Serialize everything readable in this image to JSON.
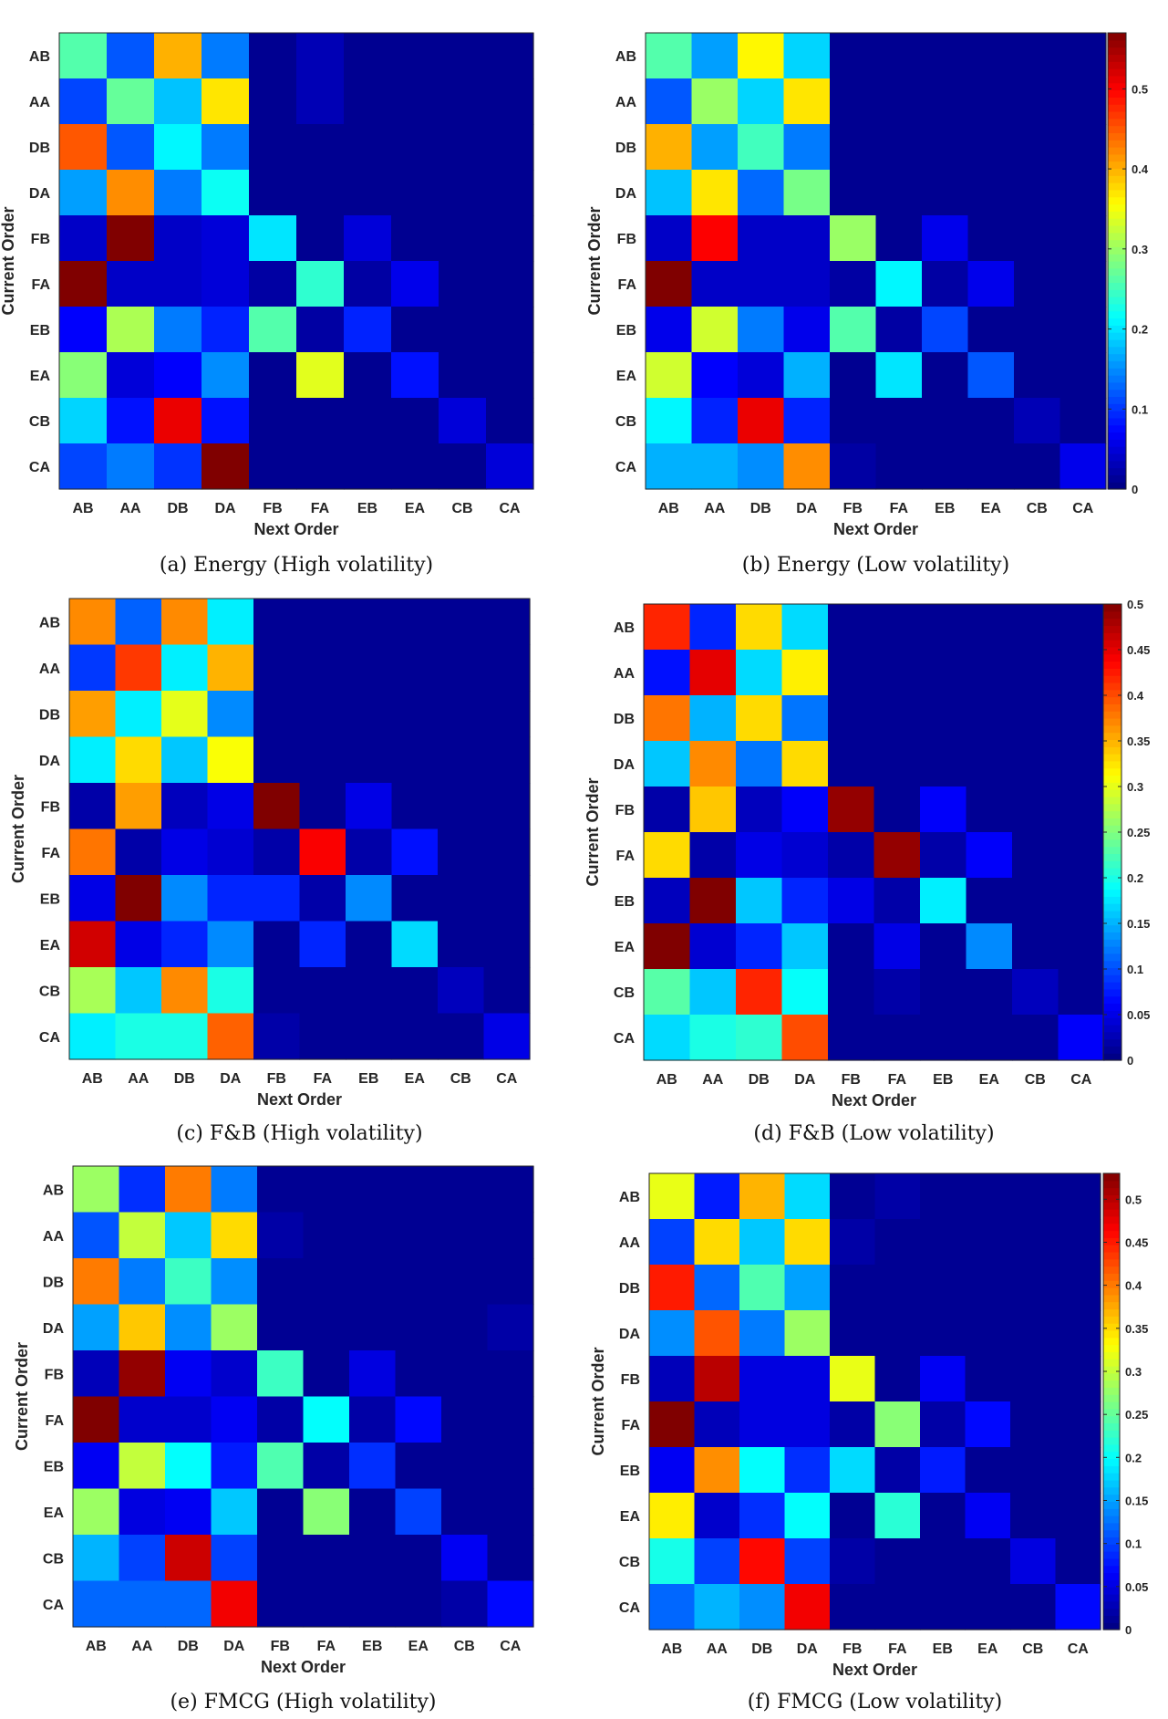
{
  "chart_data": [
    {
      "type": "heatmap",
      "title": "(a) Energy (High volatility)",
      "xlabel": "Next Order",
      "ylabel": "Current Order",
      "x_categories": [
        "AB",
        "AA",
        "DB",
        "DA",
        "FB",
        "FA",
        "EB",
        "EA",
        "CB",
        "CA"
      ],
      "y_categories": [
        "AB",
        "AA",
        "DB",
        "DA",
        "FB",
        "FA",
        "EB",
        "EA",
        "CB",
        "CA"
      ],
      "color_range": [
        0,
        0.57
      ],
      "colorbar": false,
      "values": [
        [
          0.26,
          0.12,
          0.4,
          0.14,
          0.01,
          0.03,
          0.01,
          0.01,
          0.01,
          0.01
        ],
        [
          0.11,
          0.27,
          0.18,
          0.37,
          0.01,
          0.03,
          0.01,
          0.01,
          0.01,
          0.01
        ],
        [
          0.45,
          0.12,
          0.21,
          0.14,
          0.01,
          0.01,
          0.01,
          0.01,
          0.01,
          0.01
        ],
        [
          0.16,
          0.42,
          0.14,
          0.22,
          0.01,
          0.01,
          0.01,
          0.01,
          0.01,
          0.01
        ],
        [
          0.04,
          0.57,
          0.04,
          0.05,
          0.2,
          0.01,
          0.05,
          0.01,
          0.01,
          0.01
        ],
        [
          0.57,
          0.04,
          0.04,
          0.05,
          0.02,
          0.24,
          0.02,
          0.06,
          0.01,
          0.01
        ],
        [
          0.07,
          0.31,
          0.14,
          0.09,
          0.26,
          0.02,
          0.09,
          0.01,
          0.01,
          0.01
        ],
        [
          0.29,
          0.05,
          0.07,
          0.15,
          0.01,
          0.34,
          0.01,
          0.08,
          0.01,
          0.01
        ],
        [
          0.19,
          0.08,
          0.51,
          0.08,
          0.01,
          0.01,
          0.01,
          0.01,
          0.05,
          0.01
        ],
        [
          0.11,
          0.14,
          0.1,
          0.57,
          0.01,
          0.01,
          0.01,
          0.01,
          0.01,
          0.05
        ]
      ]
    },
    {
      "type": "heatmap",
      "title": "(b) Energy (Low volatility)",
      "xlabel": "Next Order",
      "ylabel": "Current Order",
      "x_categories": [
        "AB",
        "AA",
        "DB",
        "DA",
        "FB",
        "FA",
        "EB",
        "EA",
        "CB",
        "CA"
      ],
      "y_categories": [
        "AB",
        "AA",
        "DB",
        "DA",
        "FB",
        "FA",
        "EB",
        "EA",
        "CB",
        "CA"
      ],
      "color_range": [
        0,
        0.57
      ],
      "colorbar": true,
      "colorbar_ticks": [
        0,
        0.1,
        0.2,
        0.3,
        0.4,
        0.5
      ],
      "values": [
        [
          0.26,
          0.16,
          0.36,
          0.19,
          0.01,
          0.01,
          0.01,
          0.01,
          0.01,
          0.01
        ],
        [
          0.12,
          0.3,
          0.19,
          0.37,
          0.01,
          0.01,
          0.01,
          0.01,
          0.01,
          0.01
        ],
        [
          0.4,
          0.16,
          0.25,
          0.14,
          0.01,
          0.01,
          0.01,
          0.01,
          0.01,
          0.01
        ],
        [
          0.18,
          0.37,
          0.13,
          0.28,
          0.01,
          0.01,
          0.01,
          0.01,
          0.01,
          0.01
        ],
        [
          0.04,
          0.5,
          0.04,
          0.04,
          0.3,
          0.01,
          0.06,
          0.01,
          0.01,
          0.01
        ],
        [
          0.57,
          0.04,
          0.04,
          0.04,
          0.02,
          0.21,
          0.02,
          0.06,
          0.01,
          0.01
        ],
        [
          0.06,
          0.33,
          0.14,
          0.06,
          0.26,
          0.02,
          0.11,
          0.01,
          0.01,
          0.01
        ],
        [
          0.33,
          0.07,
          0.05,
          0.17,
          0.01,
          0.2,
          0.01,
          0.12,
          0.01,
          0.01
        ],
        [
          0.21,
          0.09,
          0.51,
          0.09,
          0.01,
          0.01,
          0.01,
          0.01,
          0.03,
          0.01
        ],
        [
          0.17,
          0.17,
          0.15,
          0.42,
          0.02,
          0.01,
          0.01,
          0.01,
          0.01,
          0.06
        ]
      ]
    },
    {
      "type": "heatmap",
      "title": "(c) F&B (High volatility)",
      "xlabel": "Next Order",
      "ylabel": "Current Order",
      "x_categories": [
        "AB",
        "AA",
        "DB",
        "DA",
        "FB",
        "FA",
        "EB",
        "EA",
        "CB",
        "CA"
      ],
      "y_categories": [
        "AB",
        "AA",
        "DB",
        "DA",
        "FB",
        "FA",
        "EB",
        "EA",
        "CB",
        "CA"
      ],
      "color_range": [
        0,
        0.5
      ],
      "colorbar": false,
      "values": [
        [
          0.37,
          0.11,
          0.37,
          0.18,
          0.01,
          0.01,
          0.01,
          0.01,
          0.01,
          0.01
        ],
        [
          0.09,
          0.41,
          0.18,
          0.35,
          0.01,
          0.01,
          0.01,
          0.01,
          0.01,
          0.01
        ],
        [
          0.36,
          0.18,
          0.3,
          0.13,
          0.01,
          0.01,
          0.01,
          0.01,
          0.01,
          0.01
        ],
        [
          0.18,
          0.33,
          0.16,
          0.31,
          0.01,
          0.01,
          0.01,
          0.01,
          0.01,
          0.01
        ],
        [
          0.02,
          0.36,
          0.03,
          0.05,
          0.5,
          0.01,
          0.05,
          0.01,
          0.01,
          0.01
        ],
        [
          0.38,
          0.02,
          0.05,
          0.04,
          0.02,
          0.44,
          0.02,
          0.07,
          0.01,
          0.01
        ],
        [
          0.05,
          0.5,
          0.13,
          0.08,
          0.08,
          0.02,
          0.13,
          0.01,
          0.01,
          0.01
        ],
        [
          0.46,
          0.05,
          0.08,
          0.13,
          0.01,
          0.08,
          0.01,
          0.17,
          0.01,
          0.01
        ],
        [
          0.27,
          0.16,
          0.37,
          0.2,
          0.01,
          0.01,
          0.01,
          0.01,
          0.03,
          0.01
        ],
        [
          0.18,
          0.2,
          0.2,
          0.39,
          0.02,
          0.01,
          0.01,
          0.01,
          0.01,
          0.05
        ]
      ]
    },
    {
      "type": "heatmap",
      "title": "(d) F&B (Low volatility)",
      "xlabel": "Next Order",
      "ylabel": "Current Order",
      "x_categories": [
        "AB",
        "AA",
        "DB",
        "DA",
        "FB",
        "FA",
        "EB",
        "EA",
        "CB",
        "CA"
      ],
      "y_categories": [
        "AB",
        "AA",
        "DB",
        "DA",
        "FB",
        "FA",
        "EB",
        "EA",
        "CB",
        "CA"
      ],
      "color_range": [
        0,
        0.5
      ],
      "colorbar": true,
      "colorbar_ticks": [
        0,
        0.05,
        0.1,
        0.15,
        0.2,
        0.25,
        0.3,
        0.35,
        0.4,
        0.45,
        0.5
      ],
      "values": [
        [
          0.42,
          0.08,
          0.33,
          0.17,
          0.01,
          0.01,
          0.01,
          0.01,
          0.01,
          0.01
        ],
        [
          0.07,
          0.45,
          0.17,
          0.32,
          0.01,
          0.01,
          0.01,
          0.01,
          0.01,
          0.01
        ],
        [
          0.38,
          0.15,
          0.33,
          0.12,
          0.01,
          0.01,
          0.01,
          0.01,
          0.01,
          0.01
        ],
        [
          0.16,
          0.37,
          0.12,
          0.33,
          0.01,
          0.01,
          0.01,
          0.01,
          0.01,
          0.01
        ],
        [
          0.02,
          0.34,
          0.03,
          0.06,
          0.49,
          0.01,
          0.06,
          0.01,
          0.01,
          0.01
        ],
        [
          0.33,
          0.02,
          0.05,
          0.04,
          0.02,
          0.49,
          0.02,
          0.06,
          0.01,
          0.01
        ],
        [
          0.03,
          0.5,
          0.16,
          0.08,
          0.05,
          0.02,
          0.18,
          0.01,
          0.01,
          0.01
        ],
        [
          0.5,
          0.04,
          0.08,
          0.16,
          0.01,
          0.05,
          0.01,
          0.13,
          0.01,
          0.01
        ],
        [
          0.23,
          0.16,
          0.42,
          0.19,
          0.01,
          0.02,
          0.01,
          0.01,
          0.03,
          0.01
        ],
        [
          0.17,
          0.2,
          0.21,
          0.4,
          0.01,
          0.01,
          0.01,
          0.01,
          0.01,
          0.06
        ]
      ]
    },
    {
      "type": "heatmap",
      "title": "(e) FMCG (High volatility)",
      "xlabel": "Next Order",
      "ylabel": "Current Order",
      "x_categories": [
        "AB",
        "AA",
        "DB",
        "DA",
        "FB",
        "FA",
        "EB",
        "EA",
        "CB",
        "CA"
      ],
      "y_categories": [
        "AB",
        "AA",
        "DB",
        "DA",
        "FB",
        "FA",
        "EB",
        "EA",
        "CB",
        "CA"
      ],
      "color_range": [
        0,
        0.53
      ],
      "colorbar": false,
      "values": [
        [
          0.28,
          0.09,
          0.4,
          0.13,
          0.01,
          0.01,
          0.01,
          0.01,
          0.01,
          0.01
        ],
        [
          0.11,
          0.3,
          0.17,
          0.35,
          0.02,
          0.01,
          0.01,
          0.01,
          0.01,
          0.01
        ],
        [
          0.4,
          0.13,
          0.23,
          0.14,
          0.01,
          0.01,
          0.01,
          0.01,
          0.01,
          0.01
        ],
        [
          0.15,
          0.36,
          0.14,
          0.28,
          0.01,
          0.01,
          0.01,
          0.01,
          0.01,
          0.02
        ],
        [
          0.03,
          0.52,
          0.06,
          0.04,
          0.23,
          0.01,
          0.05,
          0.01,
          0.01,
          0.01
        ],
        [
          0.53,
          0.04,
          0.04,
          0.06,
          0.02,
          0.2,
          0.02,
          0.07,
          0.01,
          0.01
        ],
        [
          0.06,
          0.3,
          0.2,
          0.08,
          0.24,
          0.02,
          0.09,
          0.01,
          0.01,
          0.01
        ],
        [
          0.28,
          0.05,
          0.06,
          0.17,
          0.01,
          0.27,
          0.01,
          0.1,
          0.01,
          0.01
        ],
        [
          0.16,
          0.1,
          0.49,
          0.1,
          0.01,
          0.01,
          0.01,
          0.01,
          0.06,
          0.01
        ],
        [
          0.12,
          0.12,
          0.12,
          0.47,
          0.01,
          0.01,
          0.01,
          0.01,
          0.02,
          0.07
        ]
      ]
    },
    {
      "type": "heatmap",
      "title": "(f) FMCG (Low volatility)",
      "xlabel": "Next Order",
      "ylabel": "Current Order",
      "x_categories": [
        "AB",
        "AA",
        "DB",
        "DA",
        "FB",
        "FA",
        "EB",
        "EA",
        "CB",
        "CA"
      ],
      "y_categories": [
        "AB",
        "AA",
        "DB",
        "DA",
        "FB",
        "FA",
        "EB",
        "EA",
        "CB",
        "CA"
      ],
      "color_range": [
        0,
        0.53
      ],
      "colorbar": true,
      "colorbar_ticks": [
        0,
        0.05,
        0.1,
        0.15,
        0.2,
        0.25,
        0.3,
        0.35,
        0.4,
        0.45,
        0.5
      ],
      "values": [
        [
          0.32,
          0.08,
          0.37,
          0.18,
          0.01,
          0.02,
          0.01,
          0.01,
          0.01,
          0.01
        ],
        [
          0.1,
          0.35,
          0.17,
          0.35,
          0.02,
          0.01,
          0.01,
          0.01,
          0.01,
          0.01
        ],
        [
          0.45,
          0.12,
          0.24,
          0.15,
          0.01,
          0.01,
          0.01,
          0.01,
          0.01,
          0.01
        ],
        [
          0.14,
          0.42,
          0.13,
          0.28,
          0.01,
          0.01,
          0.01,
          0.01,
          0.01,
          0.01
        ],
        [
          0.03,
          0.5,
          0.05,
          0.05,
          0.32,
          0.01,
          0.06,
          0.01,
          0.01,
          0.01
        ],
        [
          0.53,
          0.03,
          0.05,
          0.05,
          0.02,
          0.27,
          0.02,
          0.07,
          0.01,
          0.01
        ],
        [
          0.06,
          0.39,
          0.2,
          0.09,
          0.18,
          0.02,
          0.08,
          0.01,
          0.01,
          0.01
        ],
        [
          0.34,
          0.04,
          0.09,
          0.2,
          0.01,
          0.22,
          0.01,
          0.06,
          0.01,
          0.01
        ],
        [
          0.21,
          0.1,
          0.46,
          0.1,
          0.02,
          0.01,
          0.01,
          0.01,
          0.05,
          0.01
        ],
        [
          0.12,
          0.16,
          0.14,
          0.47,
          0.01,
          0.01,
          0.01,
          0.01,
          0.01,
          0.07
        ]
      ]
    }
  ]
}
